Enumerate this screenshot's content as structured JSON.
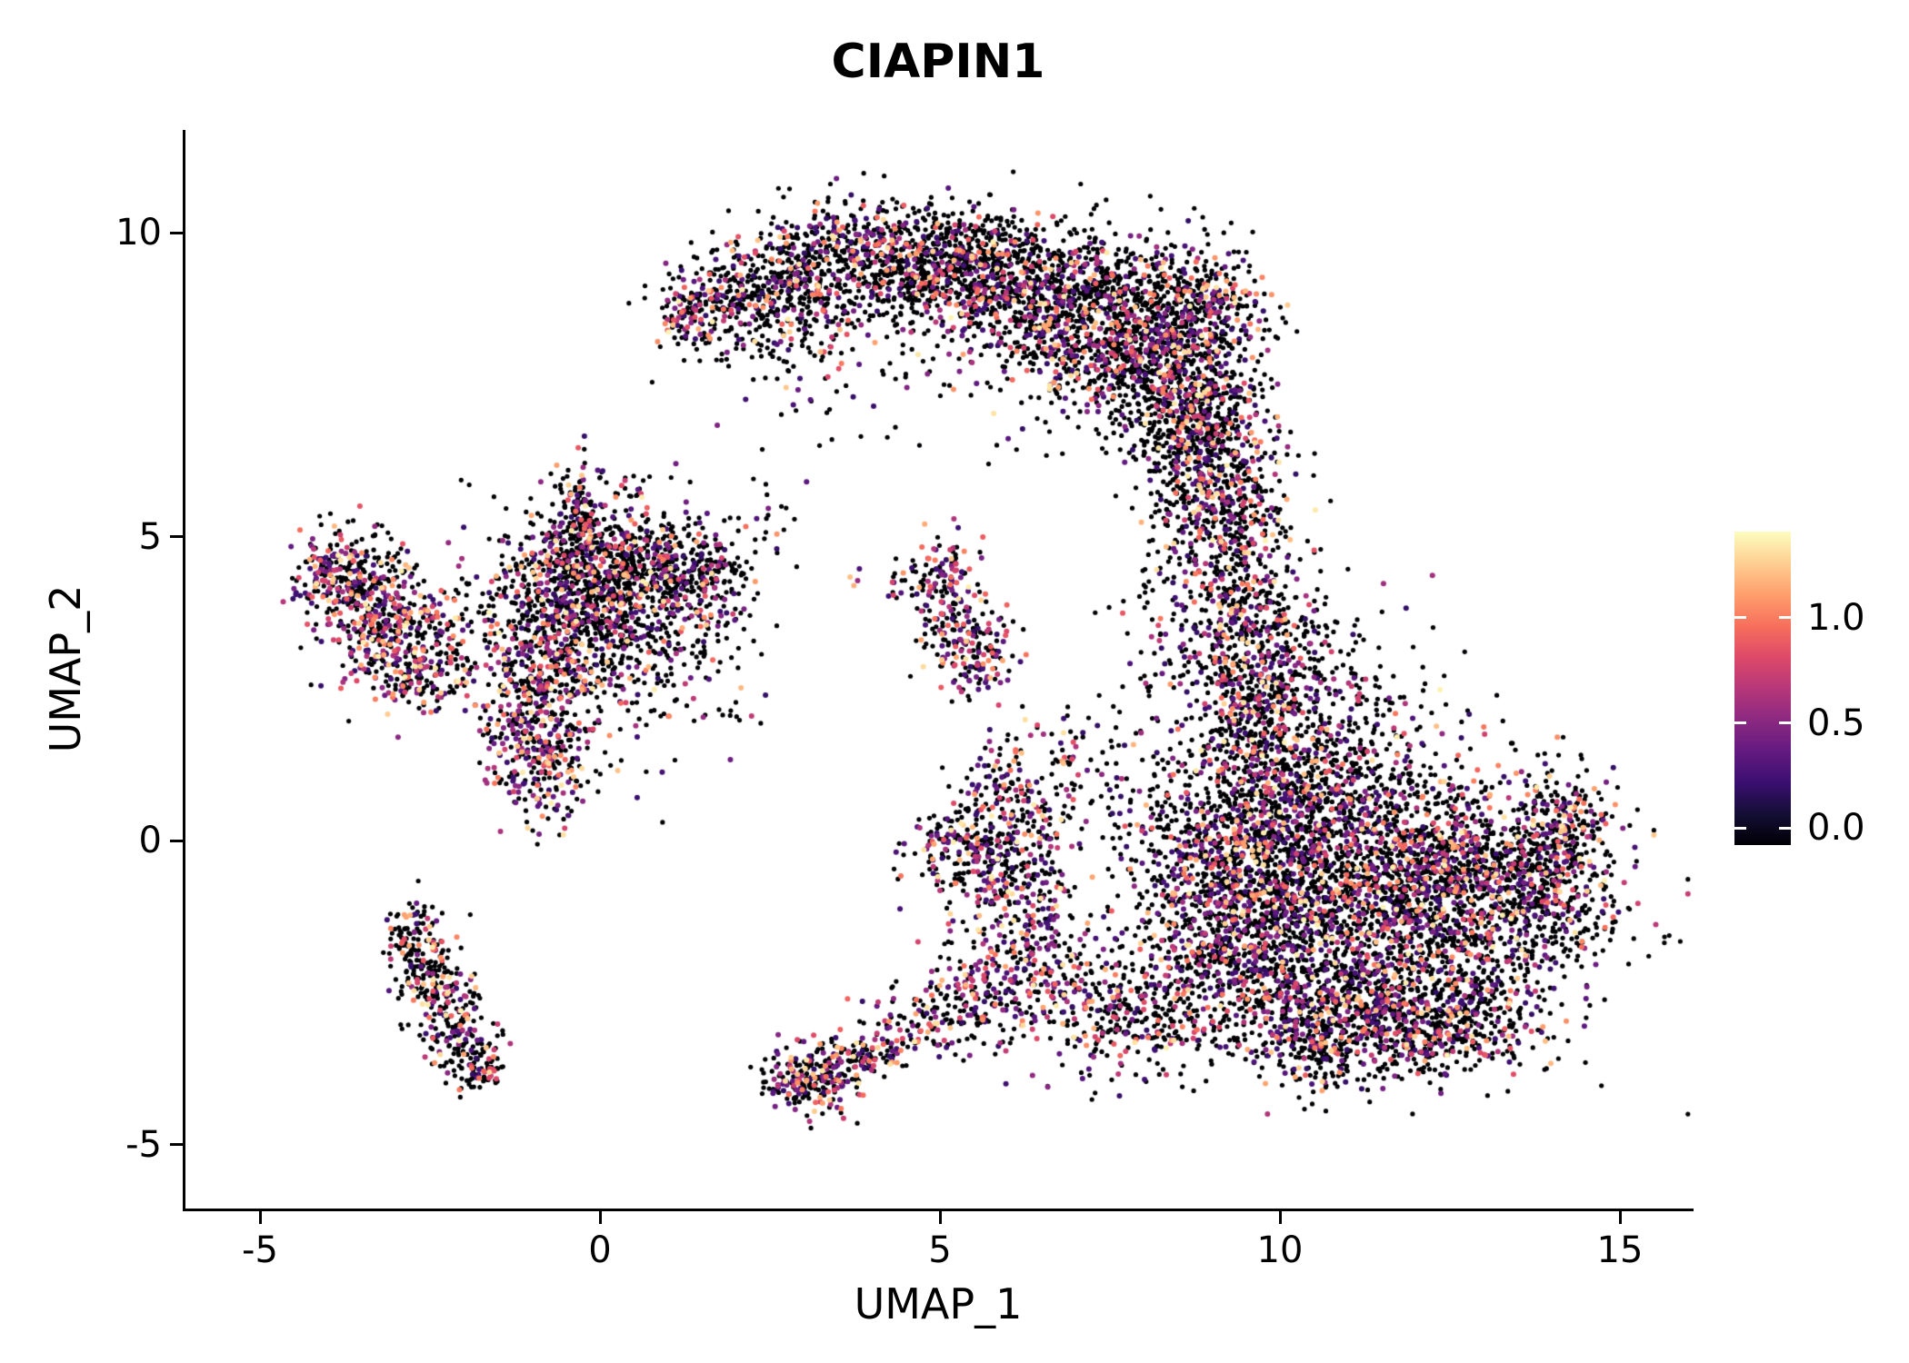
{
  "title": "CIAPIN1",
  "chart_data": {
    "type": "scatter",
    "title": "CIAPIN1",
    "xlabel": "UMAP_1",
    "ylabel": "UMAP_2",
    "xlim": [
      -6.1,
      16.1
    ],
    "ylim": [
      -6.2,
      11.7
    ],
    "x_ticks": [
      -5,
      0,
      5,
      10,
      15
    ],
    "x_tick_labels": [
      "-5",
      "0",
      "5",
      "10",
      "15"
    ],
    "y_ticks": [
      -5,
      0,
      5,
      10
    ],
    "y_tick_labels": [
      "-5",
      "0",
      "5",
      "10"
    ],
    "grid": false,
    "background": "#ffffff",
    "point_color_zero": "#000004",
    "legend": {
      "position": "right",
      "ticks": [
        1.0,
        0.5,
        0.0
      ],
      "tick_labels": [
        "1.0",
        "0.5",
        "0.0"
      ],
      "domain": [
        -0.08,
        1.41
      ],
      "colormap": "magma",
      "stops": [
        "#000004",
        "#140e36",
        "#3b0f70",
        "#641a80",
        "#8c2981",
        "#b73779",
        "#de4968",
        "#f7705c",
        "#fe9f6d",
        "#fecf92",
        "#fcfdbf"
      ]
    },
    "clusters": [
      {
        "cx": 2.0,
        "cy": 8.8,
        "sx": 0.55,
        "sy": 0.45,
        "n": 260,
        "pos_frac": 0.3,
        "heat": 0.35
      },
      {
        "cx": 3.0,
        "cy": 9.3,
        "sx": 0.6,
        "sy": 0.5,
        "n": 380,
        "pos_frac": 0.3,
        "heat": 0.35
      },
      {
        "cx": 4.2,
        "cy": 9.6,
        "sx": 0.6,
        "sy": 0.45,
        "n": 420,
        "pos_frac": 0.28,
        "heat": 0.35
      },
      {
        "cx": 5.3,
        "cy": 9.5,
        "sx": 0.6,
        "sy": 0.5,
        "n": 450,
        "pos_frac": 0.28,
        "heat": 0.35
      },
      {
        "cx": 6.3,
        "cy": 9.0,
        "sx": 0.65,
        "sy": 0.6,
        "n": 520,
        "pos_frac": 0.3,
        "heat": 0.35
      },
      {
        "cx": 7.3,
        "cy": 8.5,
        "sx": 0.7,
        "sy": 0.7,
        "n": 620,
        "pos_frac": 0.3,
        "heat": 0.35
      },
      {
        "cx": 8.2,
        "cy": 8.0,
        "sx": 0.6,
        "sy": 0.8,
        "n": 600,
        "pos_frac": 0.3,
        "heat": 0.35
      },
      {
        "cx": 8.9,
        "cy": 8.8,
        "sx": 0.45,
        "sy": 0.5,
        "n": 260,
        "pos_frac": 0.32,
        "heat": 0.35
      },
      {
        "cx": 8.8,
        "cy": 7.0,
        "sx": 0.5,
        "sy": 0.8,
        "n": 500,
        "pos_frac": 0.3,
        "heat": 0.35
      },
      {
        "cx": 9.0,
        "cy": 6.0,
        "sx": 0.45,
        "sy": 0.7,
        "n": 300,
        "pos_frac": 0.32,
        "heat": 0.35
      },
      {
        "cx": 4.6,
        "cy": 7.9,
        "sx": 1.3,
        "sy": 0.8,
        "n": 90,
        "pos_frac": 0.3,
        "heat": 0.35
      },
      {
        "cx": 3.0,
        "cy": 7.8,
        "sx": 0.6,
        "sy": 0.5,
        "n": 35,
        "pos_frac": 0.3,
        "heat": 0.35
      },
      {
        "cx": 1.35,
        "cy": 8.75,
        "sx": 0.25,
        "sy": 0.3,
        "n": 90,
        "pos_frac": 0.5,
        "heat": 0.45
      },
      {
        "cx": 9.6,
        "cy": 1.9,
        "sx": 0.55,
        "sy": 0.7,
        "n": 350,
        "pos_frac": 0.35,
        "heat": 0.4
      },
      {
        "cx": 9.7,
        "cy": 3.0,
        "sx": 0.5,
        "sy": 0.8,
        "n": 300,
        "pos_frac": 0.35,
        "heat": 0.4
      },
      {
        "cx": 9.5,
        "cy": 4.3,
        "sx": 0.5,
        "sy": 0.8,
        "n": 260,
        "pos_frac": 0.32,
        "heat": 0.4
      },
      {
        "cx": 9.2,
        "cy": 5.3,
        "sx": 0.4,
        "sy": 0.5,
        "n": 130,
        "pos_frac": 0.32,
        "heat": 0.35
      },
      {
        "cx": 10.8,
        "cy": 2.3,
        "sx": 0.8,
        "sy": 0.8,
        "n": 160,
        "pos_frac": 0.3,
        "heat": 0.35
      },
      {
        "cx": 8.6,
        "cy": 3.4,
        "sx": 0.5,
        "sy": 0.9,
        "n": 120,
        "pos_frac": 0.3,
        "heat": 0.35
      },
      {
        "cx": 11.5,
        "cy": -1.2,
        "sx": 1.5,
        "sy": 1.1,
        "n": 1900,
        "pos_frac": 0.32,
        "heat": 0.4
      },
      {
        "cx": 10.3,
        "cy": 0.2,
        "sx": 0.9,
        "sy": 0.8,
        "n": 900,
        "pos_frac": 0.32,
        "heat": 0.4
      },
      {
        "cx": 12.8,
        "cy": -0.5,
        "sx": 0.9,
        "sy": 0.7,
        "n": 700,
        "pos_frac": 0.32,
        "heat": 0.4
      },
      {
        "cx": 14.1,
        "cy": 0.2,
        "sx": 0.35,
        "sy": 0.5,
        "n": 220,
        "pos_frac": 0.45,
        "heat": 0.45
      },
      {
        "cx": 13.9,
        "cy": -1.1,
        "sx": 0.45,
        "sy": 0.5,
        "n": 160,
        "pos_frac": 0.35,
        "heat": 0.4
      },
      {
        "cx": 11.2,
        "cy": -2.8,
        "sx": 1.2,
        "sy": 0.5,
        "n": 620,
        "pos_frac": 0.32,
        "heat": 0.4
      },
      {
        "cx": 12.4,
        "cy": -3.1,
        "sx": 0.7,
        "sy": 0.4,
        "n": 300,
        "pos_frac": 0.32,
        "heat": 0.4
      },
      {
        "cx": 9.4,
        "cy": -0.8,
        "sx": 0.6,
        "sy": 0.9,
        "n": 500,
        "pos_frac": 0.34,
        "heat": 0.4
      },
      {
        "cx": 9.0,
        "cy": -2.0,
        "sx": 0.6,
        "sy": 0.6,
        "n": 280,
        "pos_frac": 0.34,
        "heat": 0.4
      },
      {
        "cx": 10.4,
        "cy": -3.4,
        "sx": 0.5,
        "sy": 0.35,
        "n": 150,
        "pos_frac": 0.35,
        "heat": 0.45
      },
      {
        "cx": 11.3,
        "cy": 1.5,
        "sx": 0.9,
        "sy": 0.6,
        "n": 140,
        "pos_frac": 0.3,
        "heat": 0.35
      },
      {
        "cx": 3.15,
        "cy": -3.95,
        "sx": 0.35,
        "sy": 0.28,
        "n": 240,
        "pos_frac": 0.5,
        "heat": 0.5
      },
      {
        "cx": 3.85,
        "cy": -3.6,
        "sx": 0.3,
        "sy": 0.2,
        "n": 90,
        "pos_frac": 0.45,
        "heat": 0.45
      },
      {
        "cx": 4.7,
        "cy": -3.1,
        "sx": 0.45,
        "sy": 0.3,
        "n": 90,
        "pos_frac": 0.45,
        "heat": 0.45
      },
      {
        "cx": 5.5,
        "cy": -2.6,
        "sx": 0.5,
        "sy": 0.4,
        "n": 110,
        "pos_frac": 0.5,
        "heat": 0.5
      },
      {
        "cx": 6.2,
        "cy": -2.1,
        "sx": 0.55,
        "sy": 0.5,
        "n": 140,
        "pos_frac": 0.5,
        "heat": 0.5
      },
      {
        "cx": 7.1,
        "cy": -2.6,
        "sx": 0.8,
        "sy": 0.6,
        "n": 220,
        "pos_frac": 0.4,
        "heat": 0.45
      },
      {
        "cx": 8.0,
        "cy": -3.0,
        "sx": 0.6,
        "sy": 0.4,
        "n": 160,
        "pos_frac": 0.35,
        "heat": 0.4
      },
      {
        "cx": 6.1,
        "cy": -1.0,
        "sx": 0.5,
        "sy": 0.55,
        "n": 130,
        "pos_frac": 0.45,
        "heat": 0.45
      },
      {
        "cx": 6.3,
        "cy": 0.3,
        "sx": 0.35,
        "sy": 0.9,
        "n": 140,
        "pos_frac": 0.4,
        "heat": 0.4
      },
      {
        "cx": 5.45,
        "cy": -0.15,
        "sx": 0.45,
        "sy": 0.4,
        "n": 260,
        "pos_frac": 0.45,
        "heat": 0.45
      },
      {
        "cx": 5.8,
        "cy": 0.8,
        "sx": 0.3,
        "sy": 0.35,
        "n": 60,
        "pos_frac": 0.4,
        "heat": 0.4
      },
      {
        "cx": 7.0,
        "cy": 1.2,
        "sx": 0.5,
        "sy": 0.6,
        "n": 60,
        "pos_frac": 0.35,
        "heat": 0.4
      },
      {
        "cx": 8.3,
        "cy": 0.3,
        "sx": 0.6,
        "sy": 0.7,
        "n": 120,
        "pos_frac": 0.35,
        "heat": 0.4
      },
      {
        "cx": 5.1,
        "cy": 4.45,
        "sx": 0.22,
        "sy": 0.28,
        "n": 70,
        "pos_frac": 0.5,
        "heat": 0.5
      },
      {
        "cx": 5.3,
        "cy": 3.6,
        "sx": 0.3,
        "sy": 0.4,
        "n": 130,
        "pos_frac": 0.5,
        "heat": 0.5
      },
      {
        "cx": 5.55,
        "cy": 3.0,
        "sx": 0.3,
        "sy": 0.3,
        "n": 100,
        "pos_frac": 0.5,
        "heat": 0.5
      },
      {
        "cx": 4.55,
        "cy": 4.35,
        "sx": 0.25,
        "sy": 0.2,
        "n": 25,
        "pos_frac": 0.3,
        "heat": 0.4
      },
      {
        "cx": 3.7,
        "cy": 4.3,
        "sx": 0.12,
        "sy": 0.12,
        "n": 4,
        "pos_frac": 0.9,
        "heat": 0.9
      },
      {
        "cx": 0.2,
        "cy": 4.0,
        "sx": 0.95,
        "sy": 0.85,
        "n": 520,
        "pos_frac": 0.25,
        "heat": 0.35
      },
      {
        "cx": -0.35,
        "cy": 5.45,
        "sx": 0.18,
        "sy": 0.4,
        "n": 110,
        "pos_frac": 0.3,
        "heat": 0.35
      },
      {
        "cx": -0.4,
        "cy": 4.4,
        "sx": 0.45,
        "sy": 0.5,
        "n": 320,
        "pos_frac": 0.3,
        "heat": 0.4
      },
      {
        "cx": 0.35,
        "cy": 4.6,
        "sx": 0.5,
        "sy": 0.4,
        "n": 200,
        "pos_frac": 0.3,
        "heat": 0.35
      },
      {
        "cx": 1.15,
        "cy": 4.5,
        "sx": 0.45,
        "sy": 0.35,
        "n": 190,
        "pos_frac": 0.3,
        "heat": 0.35
      },
      {
        "cx": 0.8,
        "cy": 3.6,
        "sx": 0.6,
        "sy": 0.5,
        "n": 150,
        "pos_frac": 0.3,
        "heat": 0.35
      },
      {
        "cx": -0.6,
        "cy": 3.2,
        "sx": 0.5,
        "sy": 0.6,
        "n": 260,
        "pos_frac": 0.45,
        "heat": 0.45
      },
      {
        "cx": -0.95,
        "cy": 2.2,
        "sx": 0.38,
        "sy": 0.6,
        "n": 230,
        "pos_frac": 0.5,
        "heat": 0.5
      },
      {
        "cx": -0.85,
        "cy": 1.15,
        "sx": 0.35,
        "sy": 0.45,
        "n": 190,
        "pos_frac": 0.5,
        "heat": 0.6
      },
      {
        "cx": 0.5,
        "cy": 2.4,
        "sx": 0.8,
        "sy": 0.7,
        "n": 110,
        "pos_frac": 0.3,
        "heat": 0.35
      },
      {
        "cx": 1.65,
        "cy": 4.5,
        "sx": 0.3,
        "sy": 0.3,
        "n": 45,
        "pos_frac": 0.3,
        "heat": 0.35
      },
      {
        "cx": 0.3,
        "cy": 5.85,
        "sx": 0.25,
        "sy": 0.15,
        "n": 20,
        "pos_frac": 0.3,
        "heat": 0.35
      },
      {
        "cx": -3.9,
        "cy": 4.3,
        "sx": 0.3,
        "sy": 0.4,
        "n": 160,
        "pos_frac": 0.5,
        "heat": 0.6
      },
      {
        "cx": -3.3,
        "cy": 3.9,
        "sx": 0.45,
        "sy": 0.45,
        "n": 210,
        "pos_frac": 0.5,
        "heat": 0.6
      },
      {
        "cx": -3.0,
        "cy": 3.2,
        "sx": 0.45,
        "sy": 0.5,
        "n": 230,
        "pos_frac": 0.55,
        "heat": 0.6
      },
      {
        "cx": -2.55,
        "cy": 2.8,
        "sx": 0.35,
        "sy": 0.35,
        "n": 120,
        "pos_frac": 0.4,
        "heat": 0.5
      },
      {
        "cx": -2.0,
        "cy": 3.7,
        "sx": 0.55,
        "sy": 0.55,
        "n": 70,
        "pos_frac": 0.35,
        "heat": 0.4
      },
      {
        "cx": -3.6,
        "cy": 4.6,
        "sx": 0.5,
        "sy": 0.25,
        "n": 60,
        "pos_frac": 0.4,
        "heat": 0.5
      },
      {
        "cx": -2.75,
        "cy": -1.55,
        "sx": 0.22,
        "sy": 0.3,
        "n": 80,
        "pos_frac": 0.35,
        "heat": 0.5
      },
      {
        "cx": -2.5,
        "cy": -2.2,
        "sx": 0.25,
        "sy": 0.4,
        "n": 130,
        "pos_frac": 0.35,
        "heat": 0.5
      },
      {
        "cx": -2.2,
        "cy": -2.9,
        "sx": 0.25,
        "sy": 0.4,
        "n": 110,
        "pos_frac": 0.35,
        "heat": 0.5
      },
      {
        "cx": -1.9,
        "cy": -3.5,
        "sx": 0.22,
        "sy": 0.35,
        "n": 100,
        "pos_frac": 0.35,
        "heat": 0.5
      },
      {
        "cx": -1.75,
        "cy": -3.85,
        "sx": 0.15,
        "sy": 0.12,
        "n": 30,
        "pos_frac": 0.5,
        "heat": 0.7
      },
      {
        "cx": 2.6,
        "cy": 5.3,
        "sx": 0.3,
        "sy": 0.25,
        "n": 12,
        "pos_frac": 0.3,
        "heat": 0.35
      }
    ]
  }
}
